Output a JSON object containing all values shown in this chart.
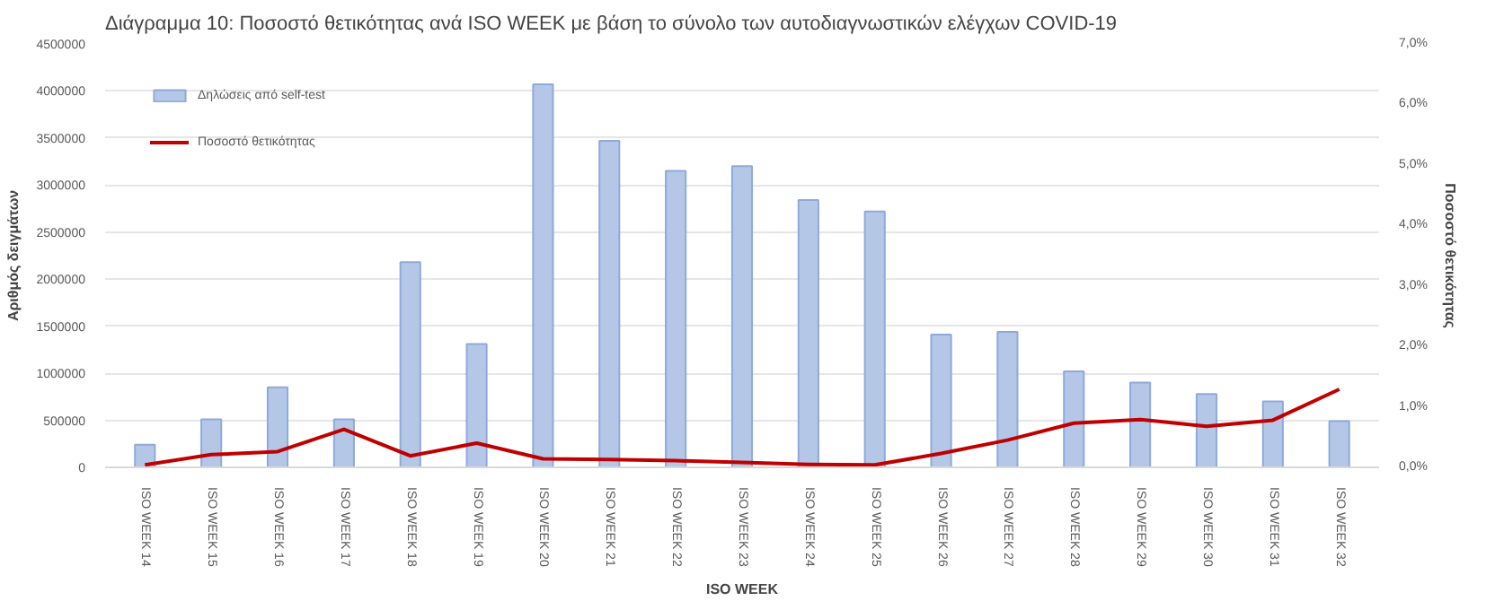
{
  "chart_data": {
    "type": "bar",
    "title": "Διάγραμμα 10: Ποσοστό θετικότητας ανά ISO WEEK με βάση το σύνολο των αυτοδιαγνωστικών ελέγχων COVID-19",
    "categories": [
      "ISO WEEK 14",
      "ISO WEEK 15",
      "ISO WEEK 16",
      "ISO WEEK 17",
      "ISO WEEK 18",
      "ISO WEEK 19",
      "ISO WEEK 20",
      "ISO WEEK 21",
      "ISO WEEK 22",
      "ISO WEEK 23",
      "ISO WEEK 24",
      "ISO WEEK 25",
      "ISO WEEK 26",
      "ISO WEEK 27",
      "ISO WEEK 28",
      "ISO WEEK 29",
      "ISO WEEK 30",
      "ISO WEEK 31",
      "ISO WEEK 32"
    ],
    "series": [
      {
        "name": "Δηλώσεις από self-test",
        "color": "#b4c7e7",
        "values": [
          240000,
          510000,
          850000,
          510000,
          2180000,
          1310000,
          4070000,
          3470000,
          3150000,
          3200000,
          2840000,
          2720000,
          1410000,
          1440000,
          1020000,
          900000,
          780000,
          700000,
          490000
        ]
      },
      {
        "name": "Ποσοστό θετικότητας",
        "type": "line",
        "axis": "y2",
        "color": "#c00000",
        "values": [
          0.04,
          0.21,
          0.26,
          0.63,
          0.19,
          0.4,
          0.14,
          0.13,
          0.11,
          0.08,
          0.05,
          0.04,
          0.23,
          0.45,
          0.73,
          0.79,
          0.68,
          0.78,
          1.29
        ]
      }
    ],
    "xlabel": "ISO WEEK",
    "ylabel": "Αριθμός δειγμάτων",
    "y2label": "Ποσοστό θετικότητας",
    "ylim": [
      0,
      4500000
    ],
    "yticks": [
      0,
      500000,
      1000000,
      1500000,
      2000000,
      2500000,
      3000000,
      3500000,
      4000000,
      4500000
    ],
    "y2lim": [
      0,
      7
    ],
    "y2ticks": [
      {
        "value": 0,
        "label": "0,0%"
      },
      {
        "value": 1,
        "label": "1,0%"
      },
      {
        "value": 2,
        "label": "2,0%"
      },
      {
        "value": 3,
        "label": "3,0%"
      },
      {
        "value": 4,
        "label": "4,0%"
      },
      {
        "value": 5,
        "label": "5,0%"
      },
      {
        "value": 6,
        "label": "6,0%"
      },
      {
        "value": 7,
        "label": "7,0%"
      }
    ],
    "grid": "y",
    "legend": "top left",
    "marker": "none",
    "line_style": "solid"
  }
}
